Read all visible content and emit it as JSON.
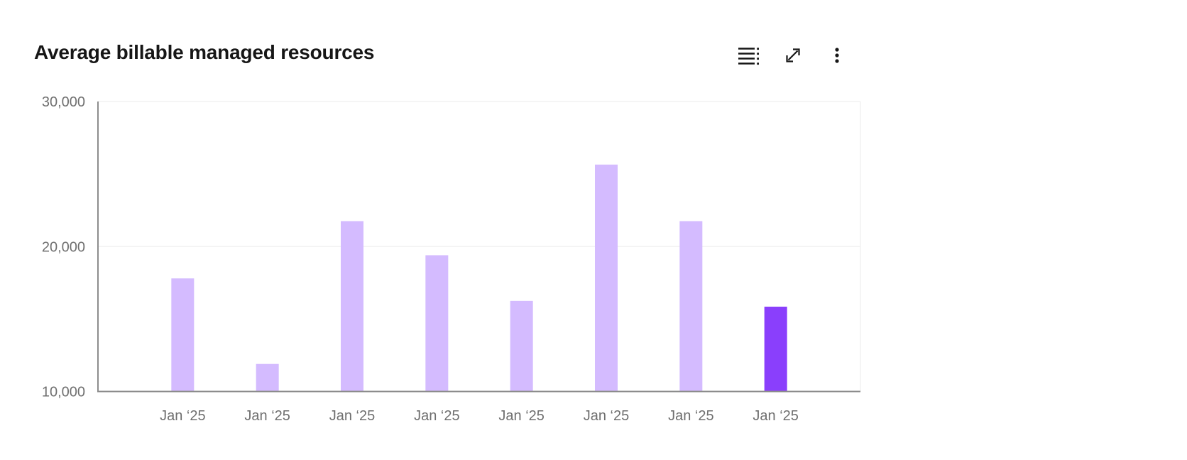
{
  "header": {
    "title": "Average billable managed resources",
    "toolbar": [
      {
        "icon": "data-table-icon"
      },
      {
        "icon": "expand-icon"
      },
      {
        "icon": "overflow-menu-icon"
      }
    ]
  },
  "colors": {
    "bar": "#d4bbff",
    "bar_highlight": "#8a3ffc",
    "axis_line": "#8d8d8d",
    "gridline": "#f2f2f2",
    "tick_text": "#6f6f6f",
    "title_text": "#161616",
    "icon": "#161616",
    "background": "#ffffff"
  },
  "chart_data": {
    "type": "bar",
    "title": "Average billable managed resources",
    "categories": [
      "Jan ‘25",
      "Jan ‘25",
      "Jan ‘25",
      "Jan ‘25",
      "Jan ‘25",
      "Jan ‘25",
      "Jan ‘25",
      "Jan ‘25"
    ],
    "values": [
      17800,
      11900,
      21750,
      19400,
      16250,
      25650,
      21750,
      15850
    ],
    "highlight_index": 7,
    "xlabel": "",
    "ylabel": "",
    "ylim": [
      10000,
      30000
    ],
    "yticks": [
      10000,
      20000,
      30000
    ],
    "ytick_labels": [
      "10,000",
      "20,000",
      "30,000"
    ],
    "grid": "horizontal",
    "legend": "none"
  }
}
